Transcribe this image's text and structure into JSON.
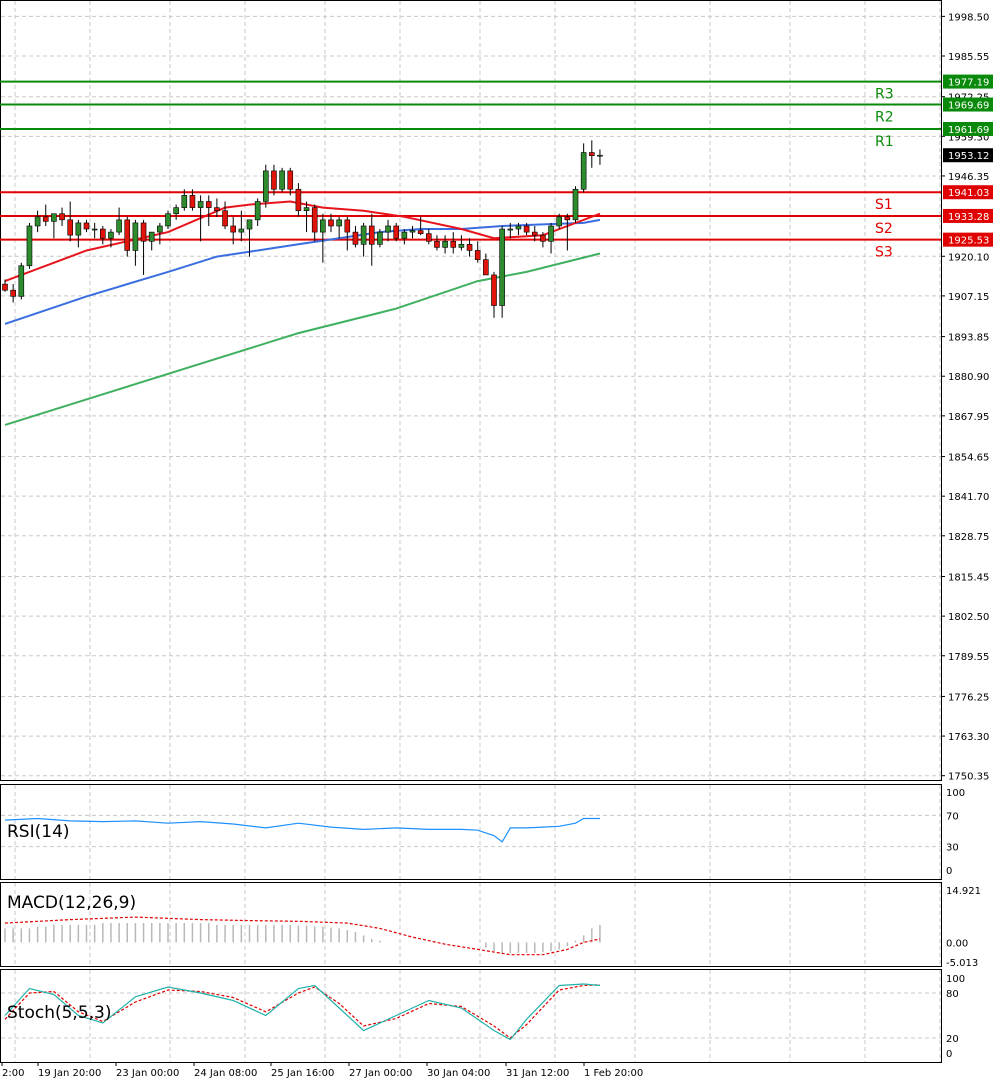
{
  "colors": {
    "up": "#2e8b2e",
    "down": "#e0140a",
    "ma_fast": "#e8141c",
    "ma_mid": "#3a6ee0",
    "ma_slow": "#3fb060",
    "resistance": "#0a8a0a",
    "support": "#e00000",
    "rsi": "#1e90ff",
    "macd_signal": "#e00000",
    "macd_hist": "#b8b8b8",
    "stoch_main": "#20b2aa",
    "stoch_signal": "#e00000",
    "grid": "#c8c8c8"
  },
  "chart_data": [
    {
      "type": "candlestick",
      "title": "",
      "yticks": [
        1998.5,
        1985.55,
        1972.25,
        1959.3,
        1946.35,
        1920.1,
        1907.15,
        1893.85,
        1880.9,
        1867.95,
        1854.65,
        1841.7,
        1828.75,
        1815.45,
        1802.5,
        1789.55,
        1776.25,
        1763.3,
        1750.35
      ],
      "ylim": [
        1749.6,
        1999.6
      ],
      "xticks": [
        "2:00",
        "19 Jan 20:00",
        "23 Jan 00:00",
        "24 Jan 08:00",
        "25 Jan 16:00",
        "27 Jan 00:00",
        "30 Jan 04:00",
        "31 Jan 12:00",
        "1 Feb 20:00"
      ],
      "last_price": "1953.12",
      "levels": [
        {
          "name": "R3",
          "value": 1977.19,
          "label": "1977.19",
          "kind": "resistance"
        },
        {
          "name": "R2",
          "value": 1969.69,
          "label": "1969.69",
          "kind": "resistance"
        },
        {
          "name": "R1",
          "value": 1961.69,
          "label": "1961.69",
          "kind": "resistance"
        },
        {
          "name": "S1",
          "value": 1941.03,
          "label": "1941.03",
          "kind": "support"
        },
        {
          "name": "S2",
          "value": 1933.28,
          "label": "1933.28",
          "kind": "support"
        },
        {
          "name": "S3",
          "value": 1925.53,
          "label": "1925.53",
          "kind": "support"
        }
      ],
      "candles": [
        [
          1911.0,
          1912.5,
          1908.5,
          1909.0
        ],
        [
          1909.0,
          1911.0,
          1905.0,
          1907.0
        ],
        [
          1907.0,
          1918.0,
          1906.0,
          1917.0
        ],
        [
          1917.0,
          1931.0,
          1916.0,
          1930.0
        ],
        [
          1930.0,
          1935.0,
          1928.0,
          1933.0
        ],
        [
          1933.0,
          1937.0,
          1930.0,
          1931.5
        ],
        [
          1931.5,
          1934.0,
          1926.0,
          1934.0
        ],
        [
          1934.0,
          1936.0,
          1930.0,
          1932.0
        ],
        [
          1932.0,
          1938.0,
          1925.0,
          1927.0
        ],
        [
          1927.0,
          1932.0,
          1923.0,
          1931.0
        ],
        [
          1931.0,
          1932.0,
          1928.0,
          1929.0
        ],
        [
          1929.0,
          1931.0,
          1926.0,
          1929.0
        ],
        [
          1929.0,
          1930.0,
          1924.0,
          1926.0
        ],
        [
          1926.0,
          1929.0,
          1923.0,
          1928.0
        ],
        [
          1928.0,
          1936.0,
          1927.0,
          1932.0
        ],
        [
          1932.0,
          1933.0,
          1920.0,
          1922.0
        ],
        [
          1922.0,
          1932.0,
          1917.0,
          1931.0
        ],
        [
          1931.0,
          1932.0,
          1914.0,
          1925.0
        ],
        [
          1925.0,
          1928.0,
          1922.0,
          1928.0
        ],
        [
          1928.0,
          1931.0,
          1924.0,
          1930.0
        ],
        [
          1930.0,
          1935.0,
          1929.0,
          1934.0
        ],
        [
          1934.0,
          1937.0,
          1932.0,
          1936.0
        ],
        [
          1936.0,
          1942.0,
          1935.0,
          1940.0
        ],
        [
          1940.0,
          1942.0,
          1935.0,
          1936.0
        ],
        [
          1936.0,
          1940.0,
          1925.0,
          1938.0
        ],
        [
          1938.0,
          1940.0,
          1930.0,
          1936.0
        ],
        [
          1936.0,
          1939.0,
          1933.0,
          1935.0
        ],
        [
          1935.0,
          1938.0,
          1929.0,
          1930.0
        ],
        [
          1930.0,
          1933.0,
          1924.0,
          1928.0
        ],
        [
          1928.0,
          1935.0,
          1925.0,
          1929.0
        ],
        [
          1929.0,
          1932.0,
          1920.0,
          1932.0
        ],
        [
          1932.0,
          1939.0,
          1930.0,
          1938.0
        ],
        [
          1938.0,
          1950.0,
          1936.0,
          1948.0
        ],
        [
          1948.0,
          1950.0,
          1940.0,
          1942.0
        ],
        [
          1942.0,
          1949.0,
          1941.0,
          1948.0
        ],
        [
          1948.0,
          1949.0,
          1940.0,
          1942.0
        ],
        [
          1942.0,
          1944.0,
          1933.0,
          1935.0
        ],
        [
          1935.0,
          1938.0,
          1928.0,
          1936.0
        ],
        [
          1936.0,
          1937.0,
          1925.0,
          1928.0
        ],
        [
          1928.0,
          1934.0,
          1918.0,
          1932.0
        ],
        [
          1932.0,
          1934.0,
          1928.0,
          1930.0
        ],
        [
          1930.0,
          1933.0,
          1926.0,
          1932.0
        ],
        [
          1932.0,
          1933.0,
          1922.0,
          1928.0
        ],
        [
          1928.0,
          1930.0,
          1923.0,
          1924.0
        ],
        [
          1924.0,
          1931.0,
          1920.0,
          1930.0
        ],
        [
          1930.0,
          1934.0,
          1917.0,
          1924.0
        ],
        [
          1924.0,
          1929.0,
          1923.0,
          1928.0
        ],
        [
          1928.0,
          1932.0,
          1925.0,
          1930.0
        ],
        [
          1930.0,
          1931.0,
          1925.0,
          1926.0
        ],
        [
          1926.0,
          1929.0,
          1924.0,
          1928.0
        ],
        [
          1928.0,
          1930.0,
          1926.0,
          1928.5
        ],
        [
          1928.5,
          1933.0,
          1927.0,
          1927.5
        ],
        [
          1927.5,
          1929.0,
          1924.0,
          1925.0
        ],
        [
          1925.0,
          1927.0,
          1922.0,
          1923.0
        ],
        [
          1923.0,
          1927.0,
          1921.0,
          1925.0
        ],
        [
          1925.0,
          1928.0,
          1921.0,
          1923.0
        ],
        [
          1923.0,
          1927.0,
          1922.0,
          1924.0
        ],
        [
          1924.0,
          1926.0,
          1920.0,
          1922.0
        ],
        [
          1922.0,
          1925.0,
          1918.0,
          1919.0
        ],
        [
          1919.0,
          1921.0,
          1914.0,
          1914.0
        ],
        [
          1914.0,
          1915.0,
          1900.0,
          1904.0
        ],
        [
          1904.0,
          1930.0,
          1900.0,
          1929.0
        ],
        [
          1929.0,
          1931.0,
          1926.0,
          1929.0
        ],
        [
          1929.0,
          1931.0,
          1927.0,
          1930.0
        ],
        [
          1930.0,
          1931.0,
          1927.0,
          1928.0
        ],
        [
          1928.0,
          1930.0,
          1925.0,
          1927.0
        ],
        [
          1927.0,
          1928.0,
          1923.0,
          1925.0
        ],
        [
          1925.0,
          1931.0,
          1921.0,
          1930.0
        ],
        [
          1930.0,
          1934.0,
          1929.0,
          1933.0
        ],
        [
          1933.0,
          1934.0,
          1922.0,
          1932.0
        ],
        [
          1932.0,
          1943.0,
          1931.0,
          1942.0
        ],
        [
          1942.0,
          1957.0,
          1941.0,
          1954.0
        ],
        [
          1954.0,
          1958.0,
          1949.0,
          1953.0
        ],
        [
          1953.0,
          1955.0,
          1950.0,
          1953.12
        ]
      ],
      "ma_fast": [
        [
          0,
          1912
        ],
        [
          10,
          1922
        ],
        [
          20,
          1928
        ],
        [
          27,
          1936
        ],
        [
          30,
          1937
        ],
        [
          35,
          1938
        ],
        [
          39,
          1936
        ],
        [
          44,
          1935
        ],
        [
          49,
          1933
        ],
        [
          56,
          1929
        ],
        [
          60,
          1926
        ],
        [
          66,
          1927
        ],
        [
          69,
          1930
        ],
        [
          73,
          1934
        ]
      ],
      "ma_mid": [
        [
          0,
          1898
        ],
        [
          10,
          1907
        ],
        [
          20,
          1915
        ],
        [
          26,
          1920
        ],
        [
          31,
          1922
        ],
        [
          36,
          1924
        ],
        [
          41,
          1926
        ],
        [
          46,
          1928
        ],
        [
          51,
          1929
        ],
        [
          56,
          1929
        ],
        [
          61,
          1930
        ],
        [
          66,
          1930.5
        ],
        [
          71,
          1931
        ],
        [
          73,
          1932
        ]
      ],
      "ma_slow": [
        [
          0,
          1865
        ],
        [
          12,
          1875
        ],
        [
          24,
          1885
        ],
        [
          36,
          1895
        ],
        [
          48,
          1903
        ],
        [
          58,
          1912
        ],
        [
          64,
          1915
        ],
        [
          70,
          1919
        ],
        [
          73,
          1921
        ]
      ]
    },
    {
      "type": "line",
      "indicator": "RSI(14)",
      "label": "RSI(14)",
      "ylim": [
        0,
        100
      ],
      "yticks": [
        "100",
        "70",
        "30",
        "0"
      ],
      "x": [
        0,
        4,
        8,
        12,
        16,
        20,
        24,
        28,
        32,
        36,
        40,
        44,
        48,
        52,
        56,
        58,
        60,
        61,
        62,
        64,
        66,
        68,
        70,
        71,
        72,
        73
      ],
      "values": [
        64,
        66,
        63,
        62,
        63,
        60,
        62,
        59,
        54,
        60,
        55,
        52,
        54,
        52,
        52,
        51,
        44,
        36,
        54,
        54,
        55,
        56,
        60,
        66,
        66,
        66
      ]
    },
    {
      "type": "bar",
      "indicator": "MACD(12,26,9)",
      "label": "MACD(12,26,9)",
      "yticks": [
        "14.921",
        "0.00",
        "-5.013"
      ],
      "ylim": [
        -5.013,
        14.921
      ],
      "histogram": [
        4,
        4,
        4,
        4,
        4.5,
        4.5,
        5,
        5,
        5,
        5,
        5,
        5,
        5.5,
        5.5,
        5.5,
        5.5,
        5.5,
        5.5,
        5.5,
        5.5,
        5.5,
        5.5,
        5.5,
        5.5,
        5.5,
        5.5,
        5,
        5,
        5,
        5,
        5,
        5,
        5,
        5,
        5,
        5,
        4.8,
        4.8,
        4.5,
        4.5,
        4.2,
        4,
        3.5,
        3,
        2,
        1,
        0.5,
        0,
        0,
        0,
        0,
        0,
        0,
        0,
        0,
        0,
        0,
        0,
        0,
        -1.5,
        -2.5,
        -3,
        -3,
        -3,
        -3,
        -3,
        -2.8,
        -2.5,
        -2,
        -1,
        0.5,
        2,
        4,
        5
      ],
      "signal_x": [
        0,
        8,
        16,
        24,
        30,
        36,
        42,
        46,
        50,
        54,
        58,
        62,
        66,
        69,
        71,
        73
      ],
      "signal": [
        5.5,
        6.5,
        7.2,
        6.5,
        6.2,
        6,
        5.5,
        4,
        1.5,
        -0.5,
        -2,
        -3.5,
        -3.5,
        -2,
        0,
        1
      ]
    },
    {
      "type": "line",
      "indicator": "Stoch(5,5,3)",
      "label": "Stoch(5,5,3)",
      "ylim": [
        0,
        100
      ],
      "yticks": [
        "100",
        "80",
        "20",
        "0"
      ],
      "x": [
        0,
        3,
        6,
        9,
        12,
        16,
        20,
        24,
        28,
        32,
        36,
        38,
        41,
        44,
        48,
        52,
        56,
        60,
        62,
        64,
        68,
        71,
        73
      ],
      "main": [
        50,
        86,
        78,
        50,
        40,
        75,
        88,
        80,
        70,
        50,
        86,
        90,
        60,
        30,
        50,
        70,
        60,
        30,
        18,
        45,
        90,
        92,
        90
      ],
      "signal": [
        45,
        80,
        82,
        55,
        42,
        68,
        84,
        82,
        74,
        55,
        80,
        88,
        66,
        36,
        46,
        66,
        62,
        36,
        20,
        38,
        84,
        90,
        91
      ]
    }
  ]
}
